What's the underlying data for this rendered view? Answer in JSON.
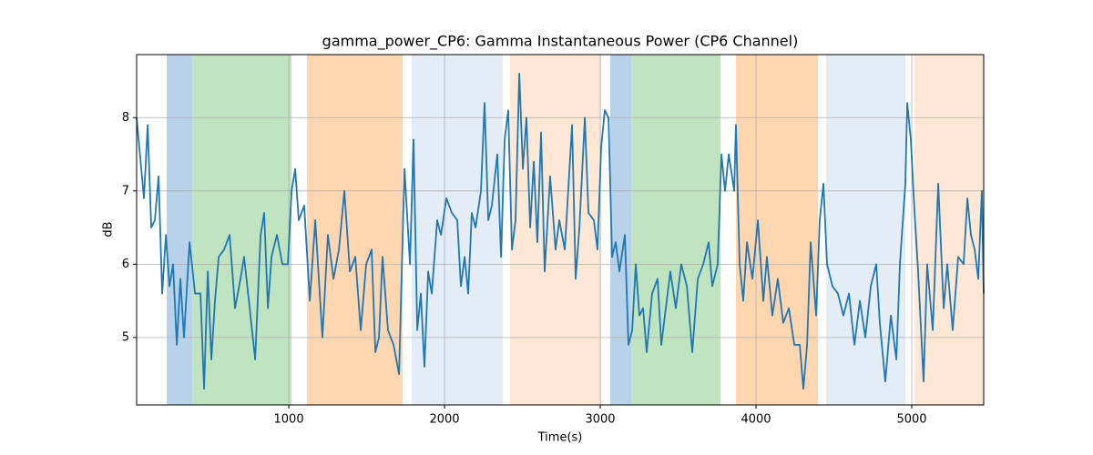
{
  "chart_data": {
    "type": "line",
    "title": "gamma_power_CP6: Gamma Instantaneous Power (CP6 Channel)",
    "x_label": "Time(s)",
    "y_label": "dB",
    "color": "#1f77b4",
    "grid": true,
    "xlim": [
      23,
      5462
    ],
    "ylim": [
      4.08,
      8.86
    ],
    "xticks": [
      1000,
      2000,
      3000,
      4000,
      5000
    ],
    "yticks": [
      5,
      6,
      7,
      8
    ],
    "spans": [
      {
        "start": 216,
        "end": 380,
        "color": "#b8d3e9"
      },
      {
        "start": 380,
        "end": 1018,
        "color": "#c0e3c0"
      },
      {
        "start": 1117,
        "end": 1731,
        "color": "#ffd6b0"
      },
      {
        "start": 1789,
        "end": 2374,
        "color": "#e4ecf6"
      },
      {
        "start": 2421,
        "end": 3006,
        "color": "#fee8d5"
      },
      {
        "start": 3064,
        "end": 3199,
        "color": "#b8d3e9"
      },
      {
        "start": 3199,
        "end": 3772,
        "color": "#c0e3c0"
      },
      {
        "start": 3871,
        "end": 4398,
        "color": "#ffd6b0"
      },
      {
        "start": 4450,
        "end": 4959,
        "color": "#e4ecf6"
      },
      {
        "start": 5018,
        "end": 5462,
        "color": "#fee8d5"
      }
    ],
    "x": [
      23,
      70,
      94,
      117,
      140,
      164,
      187,
      211,
      234,
      257,
      281,
      304,
      327,
      363,
      398,
      433,
      456,
      480,
      503,
      526,
      550,
      585,
      620,
      655,
      690,
      713,
      749,
      784,
      819,
      842,
      866,
      889,
      924,
      959,
      994,
      1018,
      1041,
      1064,
      1099,
      1135,
      1170,
      1216,
      1251,
      1287,
      1322,
      1357,
      1392,
      1427,
      1462,
      1497,
      1532,
      1556,
      1579,
      1602,
      1637,
      1673,
      1708,
      1743,
      1778,
      1801,
      1825,
      1848,
      1871,
      1895,
      1918,
      1953,
      1977,
      2012,
      2047,
      2082,
      2105,
      2129,
      2152,
      2175,
      2199,
      2234,
      2257,
      2281,
      2304,
      2339,
      2363,
      2386,
      2409,
      2433,
      2456,
      2480,
      2503,
      2526,
      2550,
      2573,
      2596,
      2620,
      2643,
      2678,
      2713,
      2737,
      2772,
      2819,
      2842,
      2866,
      2901,
      2924,
      2959,
      2982,
      3006,
      3029,
      3053,
      3076,
      3099,
      3123,
      3158,
      3181,
      3205,
      3228,
      3251,
      3275,
      3298,
      3333,
      3368,
      3392,
      3415,
      3450,
      3485,
      3520,
      3556,
      3591,
      3626,
      3661,
      3696,
      3719,
      3754,
      3778,
      3801,
      3825,
      3860,
      3871,
      3895,
      3918,
      3942,
      3977,
      4012,
      4047,
      4070,
      4105,
      4140,
      4175,
      4211,
      4246,
      4281,
      4304,
      4328,
      4351,
      4386,
      4409,
      4433,
      4456,
      4491,
      4526,
      4561,
      4597,
      4632,
      4667,
      4702,
      4737,
      4772,
      4795,
      4830,
      4866,
      4901,
      4924,
      4959,
      4971,
      4994,
      5018,
      5041,
      5076,
      5099,
      5135,
      5170,
      5205,
      5228,
      5263,
      5298,
      5333,
      5357,
      5380,
      5404,
      5427,
      5450,
      5462
    ],
    "values": [
      8.0,
      6.9,
      7.9,
      6.5,
      6.6,
      7.2,
      5.6,
      6.4,
      5.7,
      6.0,
      4.9,
      5.8,
      5.0,
      6.3,
      5.6,
      5.6,
      4.3,
      5.9,
      4.7,
      5.5,
      6.1,
      6.2,
      6.4,
      5.4,
      5.8,
      6.1,
      5.4,
      4.7,
      6.4,
      6.7,
      5.4,
      6.1,
      6.4,
      6.0,
      6.0,
      7.0,
      7.3,
      6.6,
      6.8,
      5.5,
      6.6,
      5.0,
      6.4,
      5.8,
      6.2,
      7.0,
      5.9,
      6.1,
      5.1,
      6.0,
      6.2,
      4.8,
      5.0,
      6.1,
      5.1,
      4.9,
      4.5,
      7.3,
      6.0,
      7.7,
      5.1,
      5.6,
      4.6,
      5.9,
      5.6,
      6.6,
      6.4,
      6.9,
      6.7,
      6.6,
      5.7,
      6.1,
      5.6,
      6.7,
      6.5,
      7.0,
      8.2,
      6.6,
      6.8,
      7.5,
      6.1,
      7.7,
      8.1,
      6.2,
      6.6,
      8.6,
      7.3,
      8.0,
      6.5,
      7.4,
      6.3,
      7.8,
      5.9,
      7.2,
      6.2,
      6.6,
      6.2,
      7.9,
      5.8,
      6.5,
      8.0,
      6.7,
      6.6,
      6.2,
      7.6,
      8.1,
      8.0,
      6.1,
      6.3,
      5.9,
      6.4,
      4.9,
      5.1,
      6.0,
      5.3,
      5.4,
      4.8,
      5.6,
      5.8,
      4.9,
      5.3,
      5.9,
      5.4,
      6.0,
      5.7,
      4.8,
      5.8,
      6.0,
      6.3,
      5.7,
      6.0,
      7.5,
      7.0,
      7.5,
      7.0,
      7.9,
      6.0,
      5.5,
      6.3,
      5.8,
      6.6,
      5.5,
      6.1,
      5.3,
      5.8,
      5.2,
      5.4,
      4.9,
      4.9,
      4.3,
      4.9,
      6.3,
      5.3,
      6.6,
      7.1,
      6.0,
      5.7,
      5.6,
      5.3,
      5.6,
      4.9,
      5.5,
      5.0,
      5.7,
      6.0,
      5.2,
      4.4,
      5.3,
      4.7,
      6.0,
      7.1,
      8.2,
      7.7,
      6.7,
      5.9,
      4.4,
      6.0,
      5.1,
      7.1,
      5.4,
      6.0,
      5.1,
      6.1,
      6.0,
      6.9,
      6.4,
      6.2,
      5.8,
      7.0,
      5.6
    ]
  }
}
